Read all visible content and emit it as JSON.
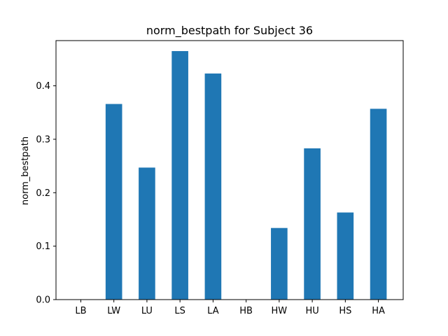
{
  "chart_data": {
    "type": "bar",
    "title": "norm_bestpath for Subject 36",
    "xlabel": "",
    "ylabel": "norm_bestpath",
    "categories": [
      "LB",
      "LW",
      "LU",
      "LS",
      "LA",
      "HB",
      "HW",
      "HU",
      "HS",
      "HA"
    ],
    "values": [
      0.0,
      0.366,
      0.247,
      0.465,
      0.423,
      0.0,
      0.134,
      0.283,
      0.163,
      0.357
    ],
    "ylim": [
      0,
      0.4846
    ],
    "yticks": [
      "0.0",
      "0.1",
      "0.2",
      "0.3",
      "0.4"
    ],
    "bar_color": "#1f77b4",
    "grid": false
  }
}
